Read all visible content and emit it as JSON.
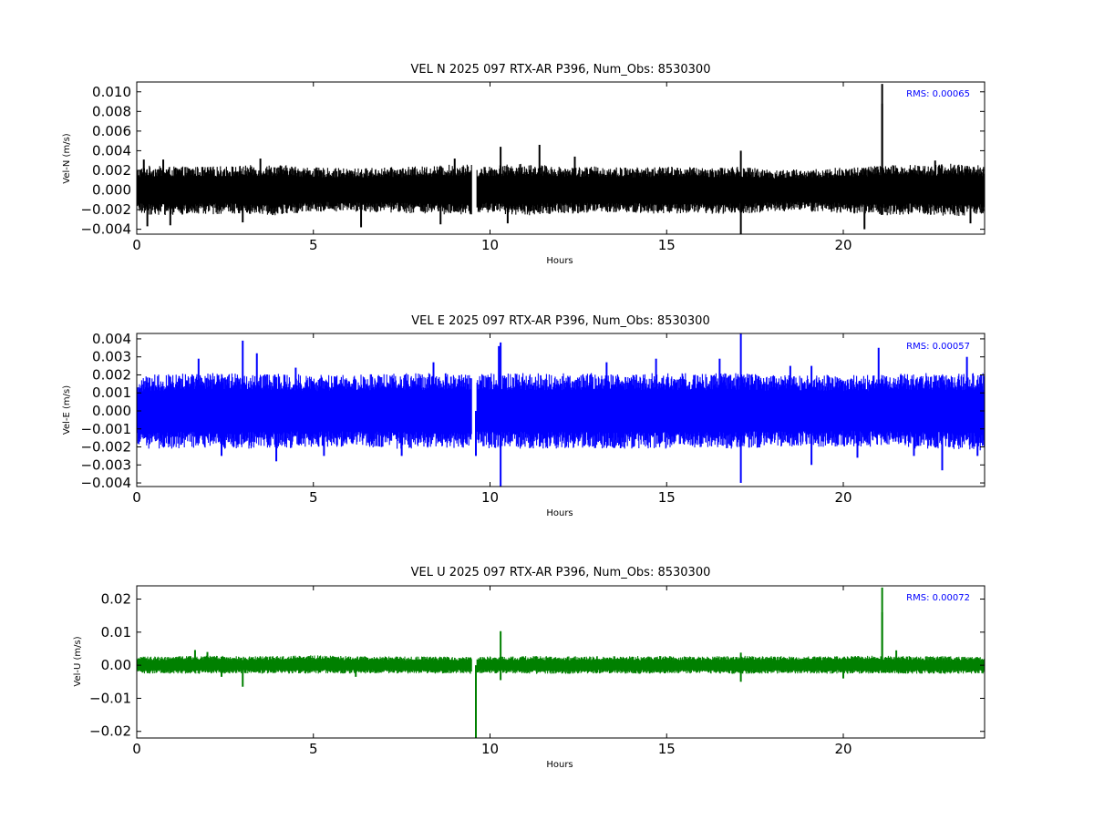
{
  "chart_data": [
    {
      "type": "line",
      "title": "VEL N 2025 097 RTX-AR  P396, Num_Obs: 8530300",
      "xlabel": "Hours",
      "ylabel": "Vel-N (m/s)",
      "xlim": [
        0,
        24
      ],
      "ylim": [
        -0.0045,
        0.011
      ],
      "x_ticks": [
        "0",
        "5",
        "10",
        "15",
        "20"
      ],
      "y_ticks": [
        "0.010",
        "0.008",
        "0.006",
        "0.004",
        "0.002",
        "0.000",
        "−0.002",
        "−0.004"
      ],
      "annotation": "RMS:  0.00065",
      "color": "#000000",
      "grid": false,
      "gaps": [
        [
          9.48,
          9.62
        ]
      ],
      "series": [
        {
          "x": [
            0,
            0.3,
            1.0,
            2.0,
            3.0,
            4.0,
            5.0,
            6.0,
            7.0,
            8.0,
            9.0,
            9.48,
            9.62,
            10.0,
            11.0,
            12.0,
            13.0,
            14.0,
            15.0,
            16.0,
            17.0,
            18.0,
            19.0,
            20.0,
            21.0,
            22.0,
            23.0,
            24.0
          ],
          "upper": [
            0.0022,
            0.0025,
            0.0024,
            0.0024,
            0.0025,
            0.0026,
            0.0023,
            0.0022,
            0.0023,
            0.0024,
            0.0026,
            0.0026,
            0.0023,
            0.0025,
            0.0027,
            0.0024,
            0.0024,
            0.0023,
            0.0024,
            0.0023,
            0.0024,
            0.0021,
            0.0021,
            0.0023,
            0.0025,
            0.0026,
            0.0027,
            0.0025
          ],
          "lower": [
            -0.0023,
            -0.0025,
            -0.0026,
            -0.0025,
            -0.0024,
            -0.0026,
            -0.0022,
            -0.0022,
            -0.0023,
            -0.0024,
            -0.0026,
            -0.0026,
            -0.0023,
            -0.0024,
            -0.0026,
            -0.0024,
            -0.0024,
            -0.0023,
            -0.0025,
            -0.0024,
            -0.0025,
            -0.0022,
            -0.0022,
            -0.0024,
            -0.0026,
            -0.0025,
            -0.0027,
            -0.0025
          ]
        }
      ],
      "spikes": [
        {
          "x": 0.2,
          "y": 0.0031
        },
        {
          "x": 0.3,
          "y": -0.0037
        },
        {
          "x": 0.75,
          "y": 0.0031
        },
        {
          "x": 0.95,
          "y": -0.0036
        },
        {
          "x": 3.0,
          "y": -0.0033
        },
        {
          "x": 3.5,
          "y": 0.0032
        },
        {
          "x": 6.35,
          "y": -0.0038
        },
        {
          "x": 8.6,
          "y": -0.0035
        },
        {
          "x": 9.0,
          "y": 0.0032
        },
        {
          "x": 10.3,
          "y": 0.0044
        },
        {
          "x": 10.5,
          "y": -0.0034
        },
        {
          "x": 11.4,
          "y": 0.0046
        },
        {
          "x": 12.4,
          "y": 0.0034
        },
        {
          "x": 17.1,
          "y": 0.004
        },
        {
          "x": 17.1,
          "y": -0.0048
        },
        {
          "x": 20.6,
          "y": -0.004
        },
        {
          "x": 21.1,
          "y": 0.0108
        },
        {
          "x": 21.1,
          "y": 0.0088
        },
        {
          "x": 22.6,
          "y": 0.003
        },
        {
          "x": 23.6,
          "y": -0.0034
        }
      ]
    },
    {
      "type": "line",
      "title": "VEL E 2025 097 RTX-AR  P396, Num_Obs: 8530300",
      "xlabel": "Hours",
      "ylabel": "Vel-E (m/s)",
      "xlim": [
        0,
        24
      ],
      "ylim": [
        -0.0042,
        0.0043
      ],
      "x_ticks": [
        "0",
        "5",
        "10",
        "15",
        "20"
      ],
      "y_ticks": [
        "0.004",
        "0.003",
        "0.002",
        "0.001",
        "0.000",
        "−0.001",
        "−0.002",
        "−0.003",
        "−0.004"
      ],
      "annotation": "RMS:  0.00057",
      "color": "#0000ff",
      "grid": false,
      "gaps": [
        [
          9.48,
          9.62
        ]
      ],
      "series": [
        {
          "x": [
            0,
            0.3,
            1.0,
            2.0,
            3.0,
            4.0,
            5.0,
            6.0,
            7.0,
            8.0,
            9.0,
            9.48,
            9.62,
            10.0,
            11.0,
            12.0,
            13.0,
            14.0,
            15.0,
            16.0,
            17.0,
            18.0,
            19.0,
            20.0,
            21.0,
            22.0,
            23.0,
            24.0
          ],
          "upper": [
            0.0017,
            0.002,
            0.0021,
            0.0021,
            0.0021,
            0.0021,
            0.002,
            0.002,
            0.0021,
            0.0021,
            0.0021,
            0.0021,
            0.002,
            0.0021,
            0.0021,
            0.0021,
            0.0021,
            0.0021,
            0.0021,
            0.0021,
            0.0021,
            0.002,
            0.002,
            0.002,
            0.002,
            0.0021,
            0.0021,
            0.0021
          ],
          "lower": [
            -0.0019,
            -0.0021,
            -0.0021,
            -0.0021,
            -0.0021,
            -0.0021,
            -0.002,
            -0.002,
            -0.0021,
            -0.0021,
            -0.0021,
            -0.0021,
            -0.002,
            -0.0021,
            -0.0021,
            -0.0021,
            -0.0021,
            -0.0021,
            -0.0021,
            -0.0021,
            -0.0021,
            -0.002,
            -0.002,
            -0.002,
            -0.002,
            -0.0021,
            -0.0021,
            -0.0022
          ]
        }
      ],
      "spikes": [
        {
          "x": 1.75,
          "y": 0.0029
        },
        {
          "x": 2.4,
          "y": -0.0025
        },
        {
          "x": 3.0,
          "y": 0.0039
        },
        {
          "x": 3.4,
          "y": 0.0032
        },
        {
          "x": 3.95,
          "y": -0.0028
        },
        {
          "x": 4.5,
          "y": 0.0024
        },
        {
          "x": 5.3,
          "y": -0.0025
        },
        {
          "x": 7.5,
          "y": -0.0025
        },
        {
          "x": 8.4,
          "y": 0.0027
        },
        {
          "x": 9.6,
          "y": -0.0025
        },
        {
          "x": 10.25,
          "y": 0.0036
        },
        {
          "x": 10.3,
          "y": 0.0038
        },
        {
          "x": 10.3,
          "y": -0.0042
        },
        {
          "x": 13.3,
          "y": 0.0027
        },
        {
          "x": 14.7,
          "y": 0.0029
        },
        {
          "x": 16.5,
          "y": 0.0029
        },
        {
          "x": 17.1,
          "y": 0.0043
        },
        {
          "x": 17.1,
          "y": -0.004
        },
        {
          "x": 18.5,
          "y": 0.0025
        },
        {
          "x": 19.1,
          "y": 0.0025
        },
        {
          "x": 19.1,
          "y": -0.003
        },
        {
          "x": 20.4,
          "y": -0.0026
        },
        {
          "x": 21.0,
          "y": 0.0035
        },
        {
          "x": 22.0,
          "y": -0.0025
        },
        {
          "x": 22.8,
          "y": -0.0033
        },
        {
          "x": 23.5,
          "y": 0.003
        },
        {
          "x": 23.8,
          "y": -0.0025
        }
      ]
    },
    {
      "type": "line",
      "title": "VEL U 2025 097 RTX-AR  P396, Num_Obs: 8530300",
      "xlabel": "Hours",
      "ylabel": "Vel-U (m/s)",
      "xlim": [
        0,
        24
      ],
      "ylim": [
        -0.022,
        0.024
      ],
      "x_ticks": [
        "0",
        "5",
        "10",
        "15",
        "20"
      ],
      "y_ticks": [
        "0.02",
        "0.01",
        "0.00",
        "−0.01",
        "−0.02"
      ],
      "annotation": "RMS:  0.00072",
      "color": "#008000",
      "grid": false,
      "gaps": [
        [
          9.48,
          9.62
        ]
      ],
      "series": [
        {
          "x": [
            0,
            0.3,
            1.0,
            2.0,
            3.0,
            4.0,
            5.0,
            6.0,
            7.0,
            8.0,
            9.0,
            9.48,
            9.62,
            10.0,
            11.0,
            12.0,
            13.0,
            14.0,
            15.0,
            16.0,
            17.0,
            18.0,
            19.0,
            20.0,
            21.0,
            22.0,
            23.0,
            24.0
          ],
          "upper": [
            0.0025,
            0.0027,
            0.0027,
            0.0029,
            0.0027,
            0.0028,
            0.003,
            0.0028,
            0.0027,
            0.0027,
            0.0026,
            0.0025,
            0.0026,
            0.0027,
            0.0028,
            0.0027,
            0.0027,
            0.0028,
            0.0028,
            0.0026,
            0.0029,
            0.0028,
            0.0027,
            0.0028,
            0.0029,
            0.0028,
            0.0027,
            0.0025
          ],
          "lower": [
            -0.0025,
            -0.0025,
            -0.0026,
            -0.0026,
            -0.0025,
            -0.0026,
            -0.0025,
            -0.0025,
            -0.0025,
            -0.0025,
            -0.0025,
            -0.0026,
            -0.0026,
            -0.0025,
            -0.0026,
            -0.0026,
            -0.0025,
            -0.0026,
            -0.0025,
            -0.0025,
            -0.0026,
            -0.0025,
            -0.0025,
            -0.0026,
            -0.0025,
            -0.0026,
            -0.0026,
            -0.0025
          ]
        }
      ],
      "spikes": [
        {
          "x": 1.65,
          "y": 0.0046
        },
        {
          "x": 2.0,
          "y": 0.004
        },
        {
          "x": 2.4,
          "y": -0.0035
        },
        {
          "x": 3.0,
          "y": -0.0065
        },
        {
          "x": 6.2,
          "y": -0.0035
        },
        {
          "x": 9.6,
          "y": -0.022
        },
        {
          "x": 10.3,
          "y": 0.0103
        },
        {
          "x": 10.3,
          "y": -0.0045
        },
        {
          "x": 17.1,
          "y": 0.0038
        },
        {
          "x": 17.1,
          "y": -0.005
        },
        {
          "x": 20.0,
          "y": -0.004
        },
        {
          "x": 21.1,
          "y": 0.0235
        },
        {
          "x": 21.1,
          "y": 0.016
        },
        {
          "x": 21.5,
          "y": 0.0045
        }
      ]
    }
  ]
}
